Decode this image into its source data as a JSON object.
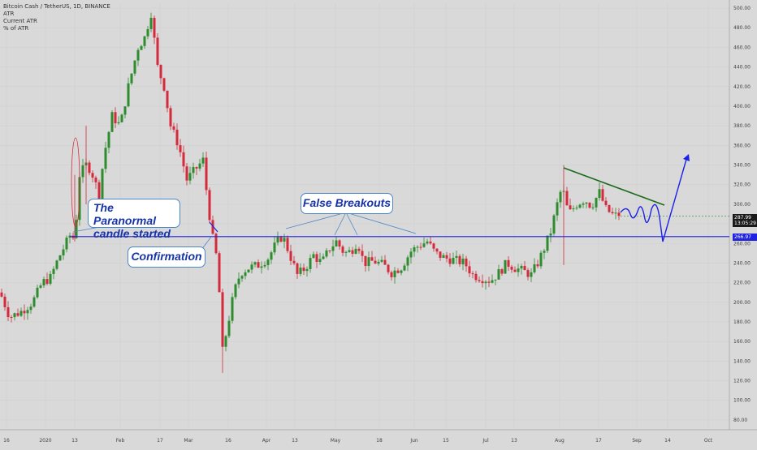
{
  "chart_data": {
    "type": "candlestick",
    "symbol": "Bitcoin Cash / TetherUS, 1D, BINANCE",
    "indicators": [
      "ATR",
      "Current ATR",
      "% of ATR"
    ],
    "y_ticks": [
      80,
      100,
      120,
      140,
      160,
      180,
      200,
      220,
      240,
      260,
      280,
      300,
      320,
      340,
      360,
      380,
      400,
      420,
      440,
      460,
      480,
      500
    ],
    "y_tick_labels": [
      "80.00",
      "100.00",
      "120.00",
      "140.00",
      "160.00",
      "180.00",
      "200.00",
      "220.00",
      "240.00",
      "260.00",
      "280.00",
      "300.00",
      "320.00",
      "340.00",
      "360.00",
      "380.00",
      "400.00",
      "420.00",
      "440.00",
      "460.00",
      "480.00",
      "500.00"
    ],
    "ylim": [
      70,
      505
    ],
    "x_ticks": [
      "16",
      "2020",
      "13",
      "Feb",
      "17",
      "Mar",
      "16",
      "Apr",
      "13",
      "May",
      "18",
      "Jun",
      "15",
      "Jul",
      "13",
      "Aug",
      "17",
      "Sep",
      "14",
      "Oct"
    ],
    "support_level": 266.97,
    "last_price": 287.99,
    "last_price_label": "287.99",
    "support_label": "266.97",
    "countdown": "13:05:29",
    "colors": {
      "up": "#2e8b2e",
      "down": "#d42a3c",
      "support": "#1f22e0",
      "trend": "#1b6b1b",
      "projection": "#1b22e8"
    },
    "annotations": {
      "paranormal": "The Paranormal candle started",
      "paranormal_line1": "The Paranormal",
      "paranormal_line2": "candle started",
      "confirmation": "Confirmation",
      "false_breakouts": "False Breakouts"
    }
  }
}
